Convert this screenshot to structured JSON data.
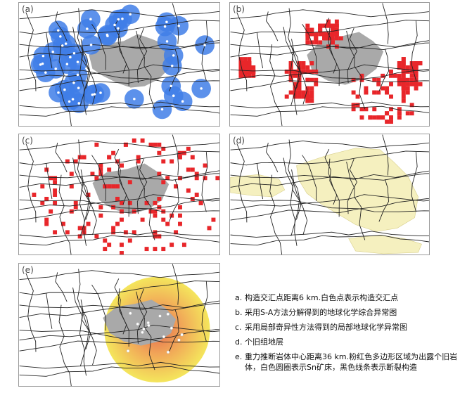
{
  "panels": [
    {
      "id": "a",
      "label": "(a)"
    },
    {
      "id": "b",
      "label": "(b)"
    },
    {
      "id": "c",
      "label": "(c)"
    },
    {
      "id": "d",
      "label": "(d)"
    },
    {
      "id": "e",
      "label": "(e)"
    }
  ],
  "legend": {
    "items": [
      {
        "marker": "a.",
        "text": "构造交汇点距离6 km.白色点表示构造交汇点"
      },
      {
        "marker": "b.",
        "text": "采用S-A方法分解得到的地球化学综合异常图"
      },
      {
        "marker": "c.",
        "text": "采用局部奇异性方法得到的局部地球化学异常图"
      },
      {
        "marker": "d.",
        "text": "个旧组地层"
      },
      {
        "marker": "e.",
        "text": "重力推断岩体中心距离36 km.粉红色多边形区域为出露个旧岩体，白色圆圈表示Sn矿床，黑色线条表示断裂构造"
      }
    ]
  },
  "colors": {
    "buffer_blue": "#3f7ee8",
    "anomaly_red": "#e8262a",
    "granite_grey": "#a9a9a9",
    "strata_yellow": "#f5f0bf",
    "gravity_yellow": "#f3e34a",
    "gravity_orange": "#ef9a45",
    "fault_black": "#222222"
  }
}
